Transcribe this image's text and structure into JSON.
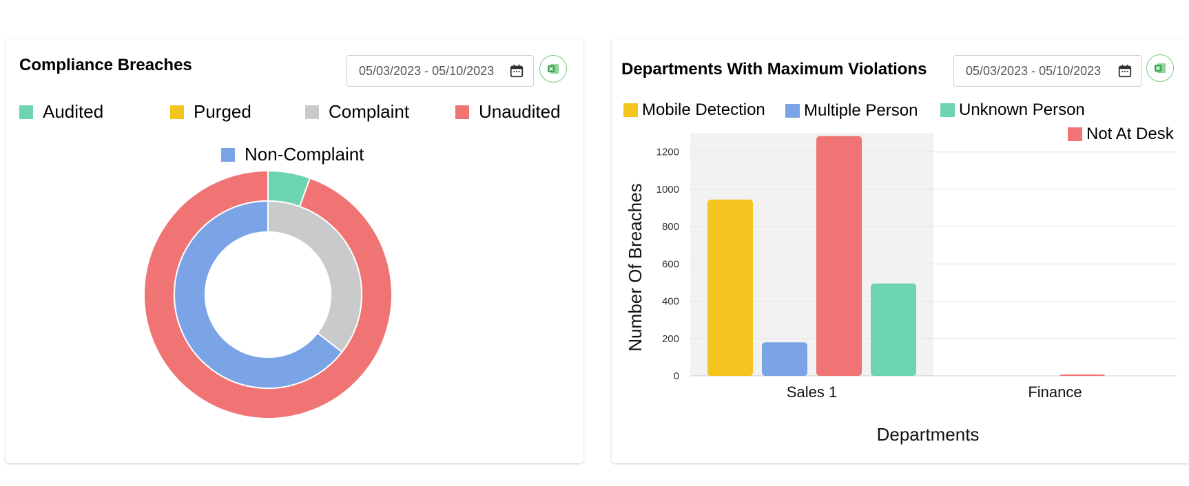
{
  "colors": {
    "teal": "#6dd4b0",
    "yellow": "#f4c51f",
    "gray": "#c9cacb",
    "red": "#f07473",
    "blue": "#7ba4e6",
    "excel_green": "#3aa54a"
  },
  "left_card": {
    "title": "Compliance Breaches",
    "date_range": "05/03/2023 - 05/10/2023",
    "calendar_icon": "calendar-icon",
    "export_icon": "excel-icon"
  },
  "right_card": {
    "title": "Departments With Maximum Violations",
    "date_range": "05/03/2023 - 05/10/2023",
    "calendar_icon": "calendar-icon",
    "export_icon": "excel-icon"
  },
  "chart_data": [
    {
      "type": "pie",
      "variant": "nested-donut",
      "title": "Compliance Breaches",
      "legend": [
        "Audited",
        "Purged",
        "Complaint",
        "Unaudited",
        "Non-Complaint"
      ],
      "legend_position": "top",
      "outer_ring": [
        {
          "name": "Audited",
          "value": 5.5
        },
        {
          "name": "Purged",
          "value": 0
        },
        {
          "name": "Unaudited",
          "value": 94.5
        }
      ],
      "inner_ring": [
        {
          "name": "Complaint",
          "value": 35.5
        },
        {
          "name": "Non-Complaint",
          "value": 64.5
        }
      ]
    },
    {
      "type": "bar",
      "title": "Departments With Maximum Violations",
      "xlabel": "Departments",
      "ylabel": "Number Of Breaches",
      "categories": [
        "Sales 1",
        "Finance"
      ],
      "ylim": [
        0,
        1280
      ],
      "yticks": [
        0,
        200,
        400,
        600,
        800,
        1000,
        1200
      ],
      "grid": true,
      "legend_position": "top",
      "series": [
        {
          "name": "Mobile Detection",
          "values": [
            945,
            0
          ]
        },
        {
          "name": "Multiple Person",
          "values": [
            180,
            0
          ]
        },
        {
          "name": "Not At Desk",
          "values": [
            1285,
            3
          ]
        },
        {
          "name": "Unknown Person",
          "values": [
            495,
            0
          ]
        }
      ],
      "highlighted_category": "Sales 1"
    }
  ]
}
